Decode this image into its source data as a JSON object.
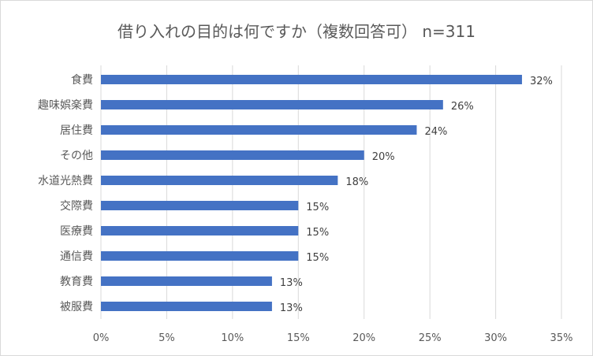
{
  "chart_data": {
    "type": "bar",
    "orientation": "horizontal",
    "title": "借り入れの目的は何ですか（複数回答可） n=311",
    "categories": [
      "食費",
      "趣味娯楽費",
      "居住費",
      "その他",
      "水道光熱費",
      "交際費",
      "医療費",
      "通信費",
      "教育費",
      "被服費"
    ],
    "values": [
      32,
      26,
      24,
      20,
      18,
      15,
      15,
      15,
      13,
      13
    ],
    "data_labels": [
      "32%",
      "26%",
      "24%",
      "20%",
      "18%",
      "15%",
      "15%",
      "15%",
      "13%",
      "13%"
    ],
    "xlim": [
      0,
      35
    ],
    "xticks": [
      0,
      5,
      10,
      15,
      20,
      25,
      30,
      35
    ],
    "xtick_labels": [
      "0%",
      "5%",
      "10%",
      "15%",
      "20%",
      "25%",
      "30%",
      "35%"
    ],
    "grid": "vertical",
    "legend": "none",
    "colors": {
      "bar": "#4472c4",
      "grid": "#d9d9d9",
      "text": "#595959"
    }
  }
}
